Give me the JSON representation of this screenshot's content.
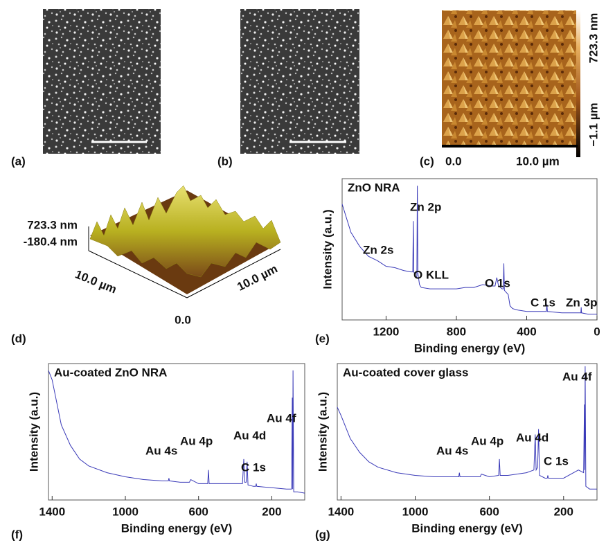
{
  "panels": {
    "a": {
      "label": "(a)"
    },
    "b": {
      "label": "(b)"
    },
    "c": {
      "label": "(c)",
      "x_start": "0.0",
      "x_end": "10.0 µm",
      "z_max": "723.3 nm",
      "z_min": "−1.1 µm"
    },
    "d": {
      "label": "(d)",
      "z_max": "723.3 nm",
      "z_min": "-180.4 nm",
      "x_axis": "10.0 µm",
      "y_axis": "10.0 µm",
      "origin": "0.0"
    }
  },
  "chart_data": [
    {
      "type": "line",
      "title": "ZnO NRA",
      "panel_label": "(e)",
      "xlabel": "Binding energy (eV)",
      "ylabel": "Intensity (a.u.)",
      "xlim": [
        1450,
        0
      ],
      "ylim": [
        0,
        100
      ],
      "xticks": [
        1200,
        800,
        400,
        0
      ],
      "color": "#3a3ab8",
      "x": [
        1450,
        1400,
        1350,
        1300,
        1250,
        1200,
        1150,
        1100,
        1060,
        1048,
        1045,
        1042,
        1030,
        1025,
        1022,
        1019,
        1010,
        1000,
        950,
        900,
        850,
        800,
        750,
        700,
        650,
        600,
        580,
        570,
        560,
        540,
        533,
        530,
        527,
        520,
        505,
        495,
        480,
        450,
        400,
        300,
        288,
        285,
        282,
        200,
        100,
        92,
        90,
        88,
        50,
        10,
        0
      ],
      "values": [
        82,
        62,
        52,
        45,
        42,
        38,
        37,
        35,
        34,
        34,
        70,
        34,
        30,
        31,
        95,
        33,
        25,
        23,
        22,
        22,
        22,
        22,
        23,
        23,
        25,
        24,
        24,
        30,
        24,
        22,
        22,
        40,
        21,
        20,
        18,
        10,
        8,
        7,
        6,
        6,
        6,
        11,
        6,
        5,
        5,
        5,
        9,
        5,
        4,
        4,
        4
      ],
      "annotations": [
        "Zn 2p",
        "Zn 2s",
        "O KLL",
        "O 1s",
        "C 1s",
        "Zn 3p"
      ]
    },
    {
      "type": "line",
      "title": "Au-coated ZnO NRA",
      "panel_label": "(f)",
      "xlabel": "Binding energy (eV)",
      "ylabel": "Intensity (a.u.)",
      "xlim": [
        1420,
        20
      ],
      "ylim": [
        0,
        100
      ],
      "xticks": [
        1400,
        1000,
        600,
        200
      ],
      "color": "#3a3ab8",
      "x": [
        1420,
        1400,
        1350,
        1300,
        1250,
        1200,
        1100,
        1000,
        900,
        800,
        765,
        762,
        759,
        700,
        650,
        643,
        600,
        550,
        546,
        542,
        500,
        400,
        360,
        353,
        348,
        340,
        335,
        330,
        300,
        288,
        285,
        282,
        200,
        120,
        92,
        88,
        86,
        84,
        80,
        60,
        20
      ],
      "values": [
        95,
        88,
        55,
        40,
        30,
        25,
        20,
        17,
        15,
        14,
        14,
        16,
        14,
        13,
        13,
        15,
        12,
        12,
        22,
        12,
        12,
        12,
        12,
        30,
        13,
        13,
        28,
        11,
        10,
        10,
        12,
        10,
        9,
        8,
        8,
        75,
        8,
        95,
        6,
        6,
        5
      ],
      "annotations": [
        "Au 4s",
        "Au 4p",
        "Au 4d",
        "C 1s",
        "Au 4f"
      ]
    },
    {
      "type": "line",
      "title": "Au-coated cover glass",
      "panel_label": "(g)",
      "xlabel": "Binding energy (eV)",
      "ylabel": "Intensity (a.u.)",
      "xlim": [
        1420,
        20
      ],
      "ylim": [
        0,
        100
      ],
      "xticks": [
        1400,
        1000,
        600,
        200
      ],
      "color": "#3a3ab8",
      "x": [
        1420,
        1400,
        1350,
        1300,
        1250,
        1200,
        1100,
        1000,
        900,
        800,
        765,
        762,
        759,
        700,
        650,
        643,
        600,
        550,
        546,
        542,
        500,
        400,
        360,
        353,
        348,
        340,
        335,
        330,
        300,
        288,
        285,
        282,
        200,
        120,
        92,
        88,
        86,
        84,
        80,
        60,
        20
      ],
      "values": [
        68,
        62,
        45,
        35,
        28,
        24,
        20,
        18,
        17,
        17,
        17,
        20,
        17,
        17,
        17,
        19,
        17,
        18,
        30,
        18,
        18,
        20,
        22,
        48,
        22,
        24,
        52,
        18,
        16,
        16,
        18,
        16,
        16,
        22,
        20,
        70,
        22,
        98,
        10,
        8,
        8
      ],
      "annotations": [
        "Au 4s",
        "Au 4p",
        "Au 4d",
        "C 1s",
        "Au 4f"
      ]
    }
  ]
}
